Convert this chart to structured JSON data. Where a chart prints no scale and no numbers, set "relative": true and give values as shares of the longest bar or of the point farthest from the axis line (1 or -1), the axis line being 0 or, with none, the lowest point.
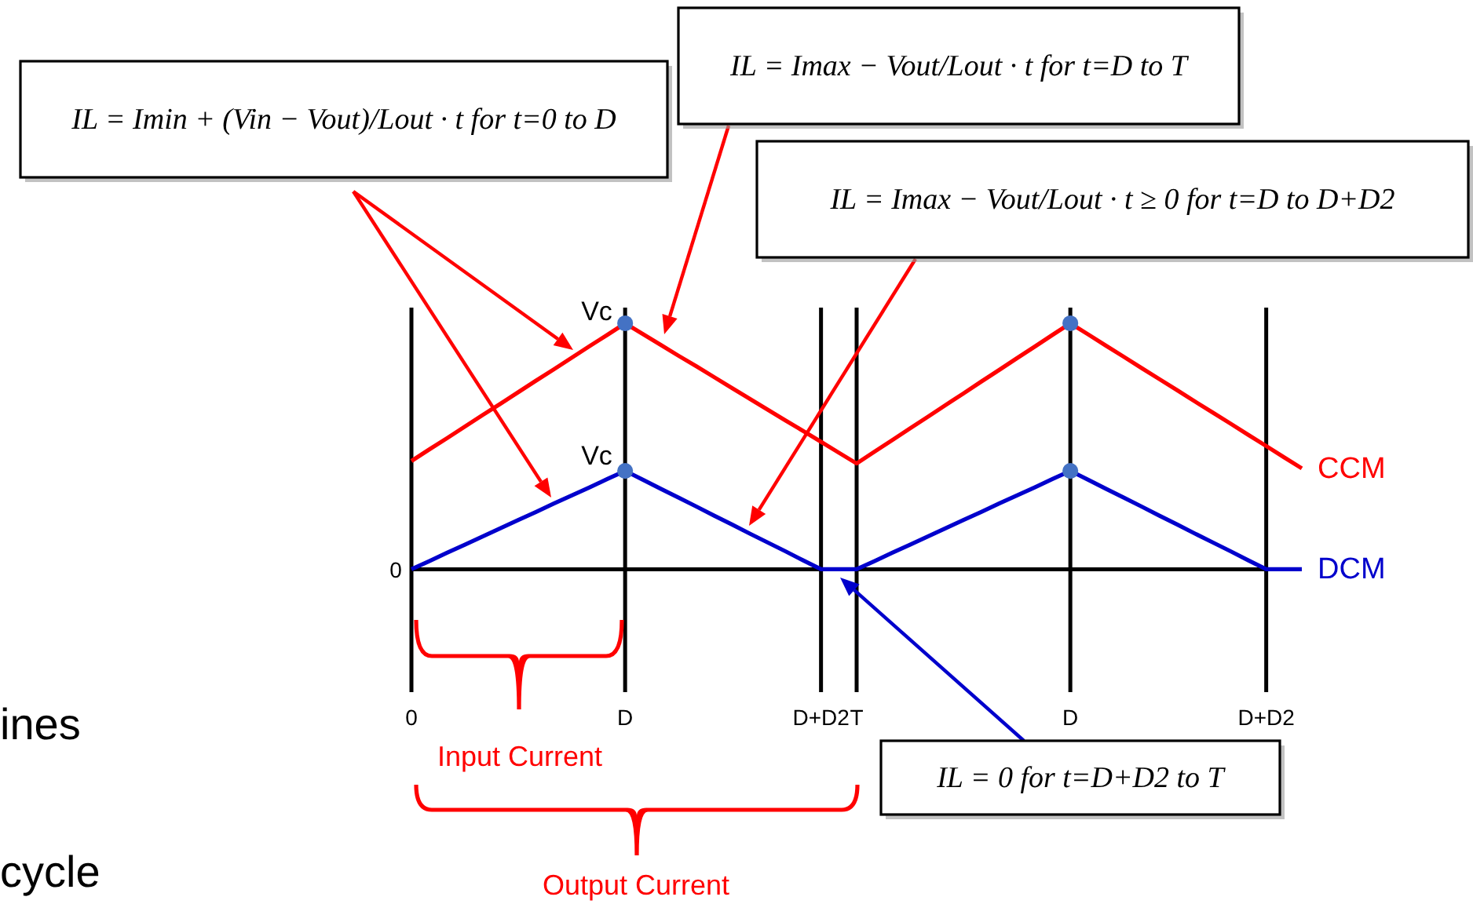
{
  "chart_data": {
    "type": "line",
    "relative": true,
    "grid": "x",
    "categories": [
      "0",
      null,
      null,
      null,
      null,
      null,
      null,
      null,
      null,
      null,
      null,
      null,
      "D",
      null,
      null,
      null,
      null,
      null,
      null,
      null,
      null,
      null,
      null,
      "D+D2",
      null,
      "T",
      null,
      null,
      null,
      null,
      null,
      null,
      null,
      null,
      null,
      null,
      null,
      "D",
      null,
      null,
      null,
      null,
      null,
      null,
      null,
      null,
      null,
      null,
      "D+D2",
      null,
      null
    ],
    "series": [
      {
        "name": "CCM",
        "color": "#ff0000",
        "values": [
          0.44,
          0.487,
          0.533,
          0.58,
          0.627,
          0.673,
          0.72,
          0.767,
          0.813,
          0.86,
          0.907,
          0.953,
          1,
          0.956,
          0.912,
          0.868,
          0.825,
          0.781,
          0.737,
          0.693,
          0.649,
          0.605,
          0.562,
          0.518,
          0.474,
          0.43,
          0.478,
          0.525,
          0.573,
          0.62,
          0.668,
          0.715,
          0.763,
          0.81,
          0.858,
          0.905,
          0.953,
          1,
          0.955,
          0.909,
          0.864,
          0.818,
          0.773,
          0.728,
          0.682,
          0.637,
          0.592,
          0.546,
          0.501,
          0.455,
          0.41
        ]
      },
      {
        "name": "DCM",
        "color": "#0000cc",
        "values": [
          0,
          0.033,
          0.067,
          0.1,
          0.133,
          0.167,
          0.2,
          0.233,
          0.267,
          0.3,
          0.333,
          0.367,
          0.4,
          0.364,
          0.327,
          0.291,
          0.255,
          0.218,
          0.182,
          0.145,
          0.109,
          0.073,
          0.036,
          0,
          0,
          0,
          0.033,
          0.067,
          0.1,
          0.133,
          0.167,
          0.2,
          0.233,
          0.267,
          0.3,
          0.333,
          0.367,
          0.4,
          0.364,
          0.327,
          0.291,
          0.255,
          0.218,
          0.182,
          0.145,
          0.109,
          0.073,
          0.036,
          0,
          0,
          0
        ]
      },
      {
        "type": "scatter",
        "color": "#4472c4",
        "marker": "circle",
        "values": [
          null,
          null,
          null,
          null,
          null,
          null,
          null,
          null,
          null,
          null,
          null,
          null,
          1,
          null,
          null,
          null,
          null,
          null,
          null,
          null,
          null,
          null,
          null,
          null,
          null,
          null,
          null,
          null,
          null,
          null,
          null,
          null,
          null,
          null,
          null,
          null,
          null,
          1,
          null,
          null,
          null,
          null,
          null,
          null,
          null,
          null,
          null,
          null,
          null,
          null,
          null
        ]
      },
      {
        "type": "scatter",
        "color": "#4472c4",
        "marker": "circle",
        "values": [
          null,
          null,
          null,
          null,
          null,
          null,
          null,
          null,
          null,
          null,
          null,
          null,
          0.4,
          null,
          null,
          null,
          null,
          null,
          null,
          null,
          null,
          null,
          null,
          null,
          null,
          null,
          null,
          null,
          null,
          null,
          null,
          null,
          null,
          null,
          null,
          null,
          null,
          0.4,
          null,
          null,
          null,
          null,
          null,
          null,
          null,
          null,
          null,
          null,
          null,
          null,
          null
        ]
      }
    ],
    "annotations": [
      "IL = Imin + (Vin − Vout)/Lout · t for t=0 to D",
      "IL = Imax − Vout/Lout · t for t=D to T",
      "IL = Imax − Vout/Lout · t ≥ 0 for t=D to D+D2",
      "IL = 0 for t=D+D2 to T",
      "Vc",
      "Vc",
      "0",
      "Input Current",
      "Output Current",
      "ines",
      "cycle"
    ]
  }
}
